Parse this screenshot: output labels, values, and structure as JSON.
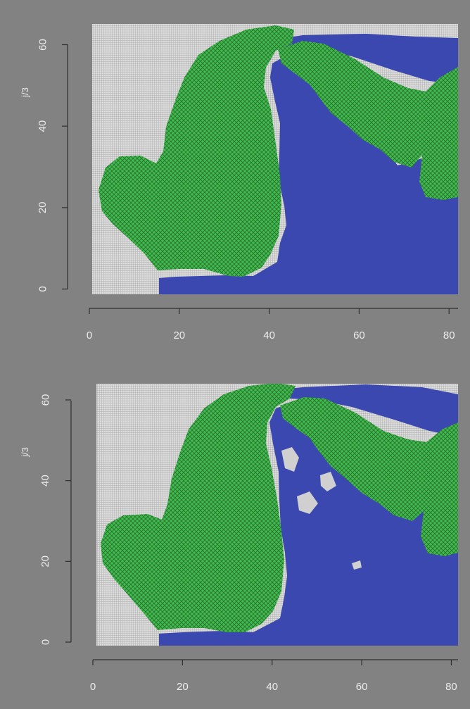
{
  "figure": {
    "background": "#828282"
  },
  "colors": {
    "panel_background": "#7a7a7a",
    "axis_line": "#2e2e2e",
    "tick_text": "#ececec",
    "grid_background": "#dcdcdc",
    "grid_line": "#a0a0a0",
    "water": "#3a48b0",
    "vegetation_light": "#3fbd4a",
    "vegetation_mid": "#2f8a3a",
    "vegetation_dark": "#26482c"
  },
  "chart_data": [
    {
      "type": "heatmap",
      "title": "",
      "xlabel": "",
      "ylabel": "j/3",
      "xlim": [
        0,
        82
      ],
      "ylim": [
        -4,
        66
      ],
      "xticks": [
        0,
        20,
        40,
        60,
        80
      ],
      "yticks": [
        0,
        20,
        40,
        60
      ],
      "grid": true,
      "categories": [
        "land (grey grid)",
        "water",
        "vegetation"
      ],
      "colors": [
        "#dcdcdc",
        "#3a48b0",
        "#3fbd4a"
      ]
    },
    {
      "type": "heatmap",
      "title": "",
      "xlabel": "",
      "ylabel": "j/3",
      "xlim": [
        0,
        82
      ],
      "ylim": [
        -4,
        66
      ],
      "xticks": [
        0,
        20,
        40,
        60,
        80
      ],
      "yticks": [
        0,
        20,
        40,
        60
      ],
      "grid": true,
      "categories": [
        "land (grey grid)",
        "water",
        "vegetation"
      ],
      "colors": [
        "#dcdcdc",
        "#3a48b0",
        "#3fbd4a"
      ]
    }
  ]
}
